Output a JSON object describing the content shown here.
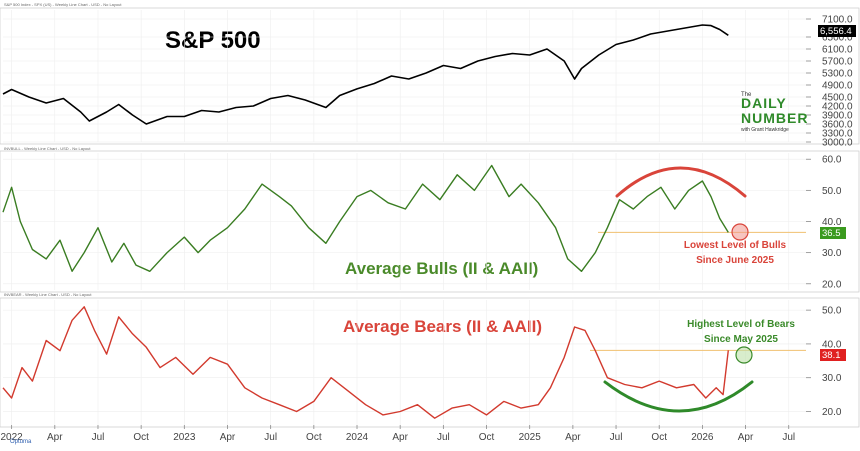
{
  "colors": {
    "sp500_line": "#000000",
    "bulls_line": "#3a7d22",
    "bears_line": "#d23a2e",
    "bulls_label": "#4a8a2a",
    "bears_label": "#d9443a",
    "annotation_red": "#d9443a",
    "annotation_green": "#3a8a2a",
    "value_box_bulls": "#3a9a1e",
    "value_box_bears": "#e02020",
    "value_box_sp": "#000000",
    "grid": "#eeeeee",
    "reference_line": "#f0c070"
  },
  "panels": {
    "sp500": {
      "header": "S&P 500 Index - SPX (US) - Weekly Line Chart - USD - No Layout",
      "title": "S&P 500",
      "last_value_label": "6,556.4"
    },
    "bulls": {
      "header": "INVBULL - Weekly Line Chart - USD - No Layout",
      "series_label": "Average Bulls (II & AAII)",
      "last_value_label": "36.5",
      "annotation_line1": "Lowest Level of Bulls",
      "annotation_line2": "Since June 2025"
    },
    "bears": {
      "header": "INVBEAR - Weekly Line Chart - USD - No Layout",
      "series_label": "Average Bears (II & AAII)",
      "last_value_label": "38.1",
      "annotation_line1": "Highest Level of Bears",
      "annotation_line2": "Since May 2025"
    }
  },
  "logo": {
    "line1": "The",
    "line2": "DAILY",
    "line3": "NUMBER",
    "line4": "with Grant Hawkridge"
  },
  "watermark": "Optuma",
  "chart_data": [
    {
      "type": "line",
      "title": "S&P 500",
      "xlabel": "",
      "ylabel": "",
      "ylim": [
        3000,
        7400
      ],
      "y_ticks": [
        3000,
        3300,
        3600,
        3900,
        4200,
        4500,
        4900,
        5300,
        5700,
        6100,
        6500,
        7100
      ],
      "y_tick_labels": [
        "3000.0",
        "3300.0",
        "3600.0",
        "3900.0",
        "4200.0",
        "4500.0",
        "4900.0",
        "5300.0",
        "5700.0",
        "6100.0",
        "6500.0",
        "7100.0"
      ],
      "x_range": [
        2021.95,
        2026.6
      ],
      "x": [
        2021.95,
        2022.0,
        2022.1,
        2022.2,
        2022.3,
        2022.4,
        2022.45,
        2022.55,
        2022.62,
        2022.7,
        2022.78,
        2022.9,
        2023.0,
        2023.1,
        2023.2,
        2023.3,
        2023.4,
        2023.5,
        2023.6,
        2023.7,
        2023.82,
        2023.9,
        2024.0,
        2024.1,
        2024.2,
        2024.3,
        2024.4,
        2024.5,
        2024.6,
        2024.7,
        2024.8,
        2024.9,
        2025.0,
        2025.1,
        2025.2,
        2025.26,
        2025.3,
        2025.4,
        2025.5,
        2025.6,
        2025.7,
        2025.8,
        2025.9,
        2026.0,
        2026.05,
        2026.1,
        2026.15
      ],
      "values": [
        4600,
        4750,
        4500,
        4300,
        4450,
        4000,
        3700,
        4000,
        4250,
        3900,
        3600,
        3850,
        3850,
        4050,
        4000,
        4150,
        4200,
        4450,
        4550,
        4400,
        4150,
        4550,
        4770,
        4950,
        5200,
        5100,
        5300,
        5550,
        5450,
        5700,
        5850,
        5950,
        5900,
        6100,
        5700,
        5100,
        5450,
        5900,
        6250,
        6400,
        6600,
        6700,
        6800,
        6900,
        6880,
        6750,
        6556.4
      ],
      "last_value": 6556.4
    },
    {
      "type": "line",
      "title": "Average Bulls (II & AAII)",
      "xlabel": "",
      "ylabel": "",
      "ylim": [
        18,
        62
      ],
      "y_ticks": [
        20,
        30,
        40,
        50,
        60
      ],
      "y_tick_labels": [
        "20.0",
        "30.0",
        "40.0",
        "50.0",
        "60.0"
      ],
      "x": [
        2021.95,
        2022.0,
        2022.05,
        2022.12,
        2022.2,
        2022.28,
        2022.35,
        2022.42,
        2022.5,
        2022.58,
        2022.65,
        2022.72,
        2022.8,
        2022.9,
        2023.0,
        2023.08,
        2023.15,
        2023.25,
        2023.35,
        2023.45,
        2023.55,
        2023.62,
        2023.72,
        2023.82,
        2023.9,
        2024.0,
        2024.08,
        2024.18,
        2024.28,
        2024.38,
        2024.48,
        2024.58,
        2024.68,
        2024.78,
        2024.88,
        2024.95,
        2025.05,
        2025.15,
        2025.22,
        2025.3,
        2025.38,
        2025.45,
        2025.52,
        2025.6,
        2025.68,
        2025.76,
        2025.84,
        2025.92,
        2026.0,
        2026.05,
        2026.1,
        2026.15
      ],
      "values": [
        43,
        51,
        40,
        31,
        28,
        34,
        24,
        30,
        38,
        27,
        33,
        26,
        24,
        30,
        35,
        30,
        34,
        38,
        44,
        52,
        48,
        45,
        38,
        33,
        40,
        48,
        50,
        46,
        44,
        52,
        47,
        55,
        50,
        58,
        48,
        52,
        46,
        38,
        28,
        24,
        30,
        38,
        47,
        44,
        48,
        51,
        44,
        50,
        53,
        48,
        41,
        36.5
      ],
      "last_value": 36.5,
      "reference_value": 36.5
    },
    {
      "type": "line",
      "title": "Average Bears (II & AAII)",
      "xlabel": "",
      "ylabel": "",
      "ylim": [
        16,
        53
      ],
      "y_ticks": [
        20,
        30,
        40,
        50
      ],
      "y_tick_labels": [
        "20.0",
        "30.0",
        "40.0",
        "50.0"
      ],
      "x_ticks": [
        2022.0,
        2022.25,
        2022.5,
        2022.75,
        2023.0,
        2023.25,
        2023.5,
        2023.75,
        2024.0,
        2024.25,
        2024.5,
        2024.75,
        2025.0,
        2025.25,
        2025.5,
        2025.75,
        2026.0,
        2026.25,
        2026.5
      ],
      "x_tick_labels": [
        "2022",
        "Apr",
        "Jul",
        "Oct",
        "2023",
        "Apr",
        "Jul",
        "Oct",
        "2024",
        "Apr",
        "Jul",
        "Oct",
        "2025",
        "Apr",
        "Jul",
        "Oct",
        "2026",
        "Apr",
        "Jul"
      ],
      "x": [
        2021.95,
        2022.0,
        2022.06,
        2022.12,
        2022.2,
        2022.28,
        2022.35,
        2022.42,
        2022.48,
        2022.55,
        2022.62,
        2022.7,
        2022.78,
        2022.86,
        2022.95,
        2023.05,
        2023.15,
        2023.25,
        2023.35,
        2023.45,
        2023.55,
        2023.65,
        2023.75,
        2023.85,
        2023.95,
        2024.05,
        2024.15,
        2024.25,
        2024.35,
        2024.45,
        2024.55,
        2024.65,
        2024.75,
        2024.85,
        2024.95,
        2025.05,
        2025.12,
        2025.2,
        2025.26,
        2025.32,
        2025.38,
        2025.45,
        2025.55,
        2025.65,
        2025.75,
        2025.85,
        2025.95,
        2026.02,
        2026.08,
        2026.12,
        2026.15
      ],
      "values": [
        27,
        24,
        33,
        29,
        41,
        38,
        47,
        51,
        44,
        37,
        48,
        43,
        39,
        33,
        36,
        31,
        36,
        34,
        27,
        24,
        22,
        20,
        23,
        30,
        26,
        22,
        19,
        20,
        22,
        18,
        21,
        22,
        19,
        23,
        21,
        22,
        27,
        36,
        45,
        44,
        38,
        30,
        28,
        27,
        29,
        27,
        28,
        24,
        27,
        25,
        38.1
      ],
      "last_value": 38.1,
      "reference_value": 38.1
    }
  ]
}
